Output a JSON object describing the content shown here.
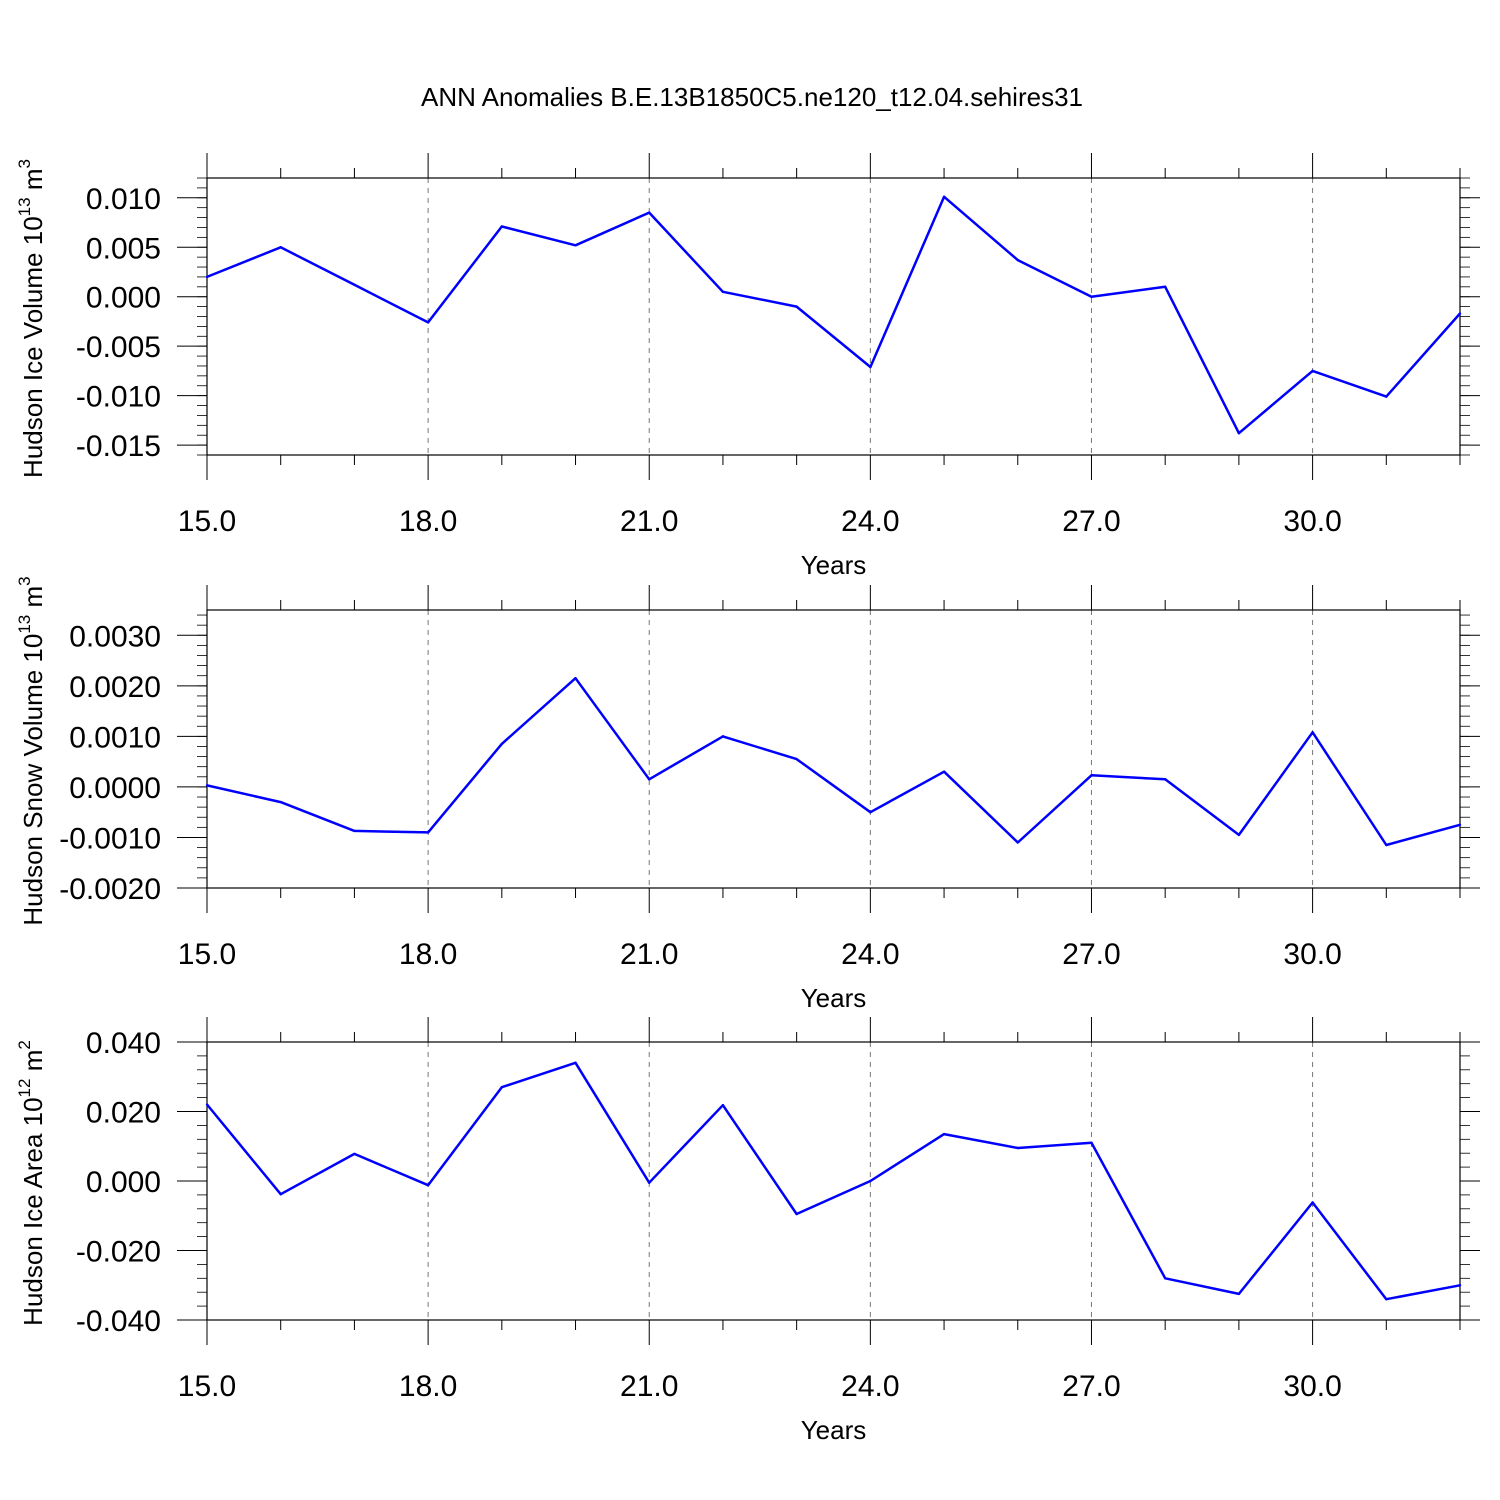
{
  "title": "ANN Anomalies B.E.13B1850C5.ne120_t12.04.sehires31",
  "chart_data": [
    {
      "type": "line",
      "ylabel_main": "Hudson Ice Volume 10",
      "ylabel_exp": "13",
      "ylabel_unit": " m",
      "ylabel_unit_exp": "3",
      "xlabel": "Years",
      "xlim": [
        15,
        32
      ],
      "ylim": [
        -0.016,
        0.012
      ],
      "xticks": [
        15,
        18,
        21,
        24,
        27,
        30
      ],
      "xtick_labels": [
        "15.0",
        "18.0",
        "21.0",
        "24.0",
        "27.0",
        "30.0"
      ],
      "yticks": [
        0.01,
        0.005,
        0.0,
        -0.005,
        -0.01,
        -0.015
      ],
      "ytick_labels": [
        "0.010",
        "0.005",
        "0.000",
        "-0.005",
        "-0.010",
        "-0.015"
      ],
      "yminor_step": 0.001,
      "grid": "x-dashed",
      "line_color": "#0000ff",
      "x": [
        15,
        16,
        17,
        18,
        19,
        20,
        21,
        22,
        23,
        24,
        25,
        26,
        27,
        28,
        29,
        30,
        31,
        32
      ],
      "y": [
        0.002,
        0.005,
        0.0012,
        -0.0026,
        0.0071,
        0.0052,
        0.0085,
        0.0005,
        -0.001,
        -0.0071,
        0.0101,
        0.0037,
        0.0,
        0.001,
        -0.0138,
        -0.0075,
        -0.0101,
        -0.0017
      ]
    },
    {
      "type": "line",
      "ylabel_main": "Hudson Snow Volume 10",
      "ylabel_exp": "13",
      "ylabel_unit": " m",
      "ylabel_unit_exp": "3",
      "xlabel": "Years",
      "xlim": [
        15,
        32
      ],
      "ylim": [
        -0.002,
        0.0035
      ],
      "xticks": [
        15,
        18,
        21,
        24,
        27,
        30
      ],
      "xtick_labels": [
        "15.0",
        "18.0",
        "21.0",
        "24.0",
        "27.0",
        "30.0"
      ],
      "yticks": [
        0.003,
        0.002,
        0.001,
        0.0,
        -0.001,
        -0.002
      ],
      "ytick_labels": [
        "0.0030",
        "0.0020",
        "0.0010",
        "0.0000",
        "-0.0010",
        "-0.0020"
      ],
      "yminor_step": 0.0002,
      "grid": "x-dashed",
      "line_color": "#0000ff",
      "x": [
        15,
        16,
        17,
        18,
        19,
        20,
        21,
        22,
        23,
        24,
        25,
        26,
        27,
        28,
        29,
        30,
        31,
        32
      ],
      "y": [
        3e-05,
        -0.0003,
        -0.00087,
        -0.0009,
        0.00085,
        0.00215,
        0.00015,
        0.001,
        0.00055,
        -0.0005,
        0.0003,
        -0.0011,
        0.00023,
        0.00015,
        -0.00095,
        0.00108,
        -0.00115,
        -0.00075
      ]
    },
    {
      "type": "line",
      "ylabel_main": "Hudson Ice Area 10",
      "ylabel_exp": "12",
      "ylabel_unit": " m",
      "ylabel_unit_exp": "2",
      "xlabel": "Years",
      "xlim": [
        15,
        32
      ],
      "ylim": [
        -0.04,
        0.04
      ],
      "xticks": [
        15,
        18,
        21,
        24,
        27,
        30
      ],
      "xtick_labels": [
        "15.0",
        "18.0",
        "21.0",
        "24.0",
        "27.0",
        "30.0"
      ],
      "yticks": [
        0.04,
        0.02,
        0.0,
        -0.02,
        -0.04
      ],
      "ytick_labels": [
        "0.040",
        "0.020",
        "0.000",
        "-0.020",
        "-0.040"
      ],
      "yminor_step": 0.004,
      "grid": "x-dashed",
      "line_color": "#0000ff",
      "x": [
        15,
        16,
        17,
        18,
        19,
        20,
        21,
        22,
        23,
        24,
        25,
        26,
        27,
        28,
        29,
        30,
        31,
        32
      ],
      "y": [
        0.022,
        -0.0038,
        0.0078,
        -0.0012,
        0.027,
        0.034,
        -0.0005,
        0.0218,
        -0.0095,
        0.0,
        0.0135,
        0.0095,
        0.011,
        -0.028,
        -0.0325,
        -0.0062,
        -0.034,
        -0.03
      ]
    }
  ]
}
